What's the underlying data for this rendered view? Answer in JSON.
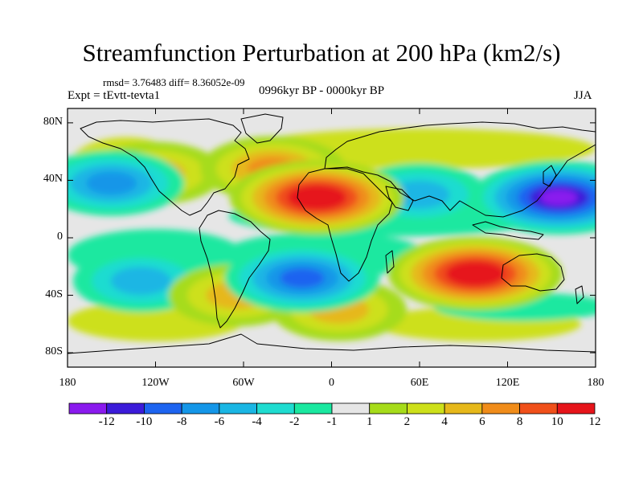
{
  "header": {
    "title": "Streamfunction Perturbation at 200 hPa (km2/s)",
    "stats": "rmsd= 3.76483 diff= 8.36052e-09",
    "experiment": "Expt = tEvtt-tevta1",
    "period": "0996kyr BP - 0000kyr BP",
    "season": "JJA"
  },
  "map": {
    "lat_labels": [
      "80N",
      "40N",
      "0",
      "40S",
      "80S"
    ],
    "lat_values": [
      80,
      40,
      0,
      -40,
      -80
    ],
    "lon_labels": [
      "180",
      "120W",
      "60W",
      "0",
      "60E",
      "120E",
      "180"
    ],
    "lon_values": [
      -180,
      -120,
      -60,
      0,
      60,
      120,
      180
    ],
    "lat_range": [
      -90,
      90
    ],
    "lon_range": [
      -180,
      180
    ]
  },
  "colorbar": {
    "labels": [
      "-12",
      "-10",
      "-8",
      "-6",
      "-4",
      "-2",
      "-1",
      "1",
      "2",
      "4",
      "6",
      "8",
      "10",
      "12"
    ],
    "colors": [
      "#8a1aee",
      "#3b1bd9",
      "#1d64f0",
      "#1496e8",
      "#1ab6e4",
      "#1fdcd0",
      "#1ae8a0",
      "#e6e6e6",
      "#a6dc1a",
      "#cde01a",
      "#e6b81a",
      "#f08c1a",
      "#f0501a",
      "#e6141a"
    ]
  },
  "chart_data": {
    "type": "heatmap",
    "title": "Streamfunction Perturbation at 200 hPa (km2/s)",
    "variable": "streamfunction perturbation",
    "units": "km2/s",
    "level": "200 hPa",
    "season": "JJA",
    "levels": [
      -12,
      -10,
      -8,
      -6,
      -4,
      -2,
      -1,
      1,
      2,
      4,
      6,
      8,
      10,
      12
    ],
    "features": [
      {
        "name": "north-africa-max",
        "lon": -10,
        "lat": 28,
        "value": 12,
        "sign": "positive"
      },
      {
        "name": "northwest-pacific-min",
        "lon": 155,
        "lat": 28,
        "value": -12,
        "sign": "negative"
      },
      {
        "name": "australia-indian-max",
        "lon": 98,
        "lat": -25,
        "value": 12,
        "sign": "positive"
      },
      {
        "name": "south-atlantic-min",
        "lon": -20,
        "lat": -28,
        "value": -8,
        "sign": "negative"
      },
      {
        "name": "asia-belt-min",
        "lon": 60,
        "lat": 30,
        "value": -4,
        "sign": "negative"
      },
      {
        "name": "east-pacific-min",
        "lon": -150,
        "lat": 38,
        "value": -6,
        "sign": "negative"
      },
      {
        "name": "north-pacific-max",
        "lon": -120,
        "lat": 45,
        "value": 4,
        "sign": "positive"
      },
      {
        "name": "north-atlantic-max",
        "lon": -40,
        "lat": 48,
        "value": 6,
        "sign": "positive"
      },
      {
        "name": "south-pacific-min",
        "lon": -130,
        "lat": -30,
        "value": -4,
        "sign": "negative"
      },
      {
        "name": "south-america-max",
        "lon": -65,
        "lat": -40,
        "value": 4,
        "sign": "positive"
      },
      {
        "name": "southern-ocean-max",
        "lon": 5,
        "lat": -50,
        "value": 4,
        "sign": "positive"
      }
    ]
  }
}
